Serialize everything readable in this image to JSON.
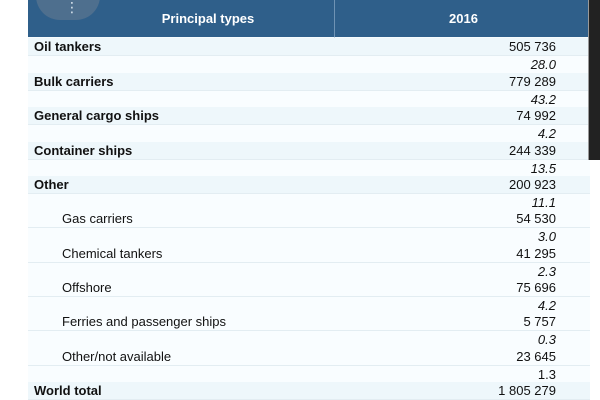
{
  "header": {
    "type_label": "Principal types",
    "year_label": "2016",
    "menu_icon": "vertical-dots"
  },
  "rows": [
    {
      "label": "Oil tankers",
      "value": "505 736",
      "share": "28.0"
    },
    {
      "label": "Bulk carriers",
      "value": "779 289",
      "share": "43.2"
    },
    {
      "label": "General cargo ships",
      "value": "74 992",
      "share": "4.2"
    },
    {
      "label": "Container ships",
      "value": "244 339",
      "share": "13.5"
    },
    {
      "label": "Other",
      "value": "200 923",
      "share": "11.1"
    },
    {
      "label": "Gas carriers",
      "value": "54 530",
      "share": "3.0"
    },
    {
      "label": "Chemical tankers",
      "value": "41 295",
      "share": "2.3"
    },
    {
      "label": "Offshore",
      "value": "75 696",
      "share": "4.2"
    },
    {
      "label": "Ferries and passenger ships",
      "value": "5 757",
      "share": "0.3"
    },
    {
      "label": "Other/not available",
      "value": "23 645",
      "share": "1.3"
    }
  ],
  "total": {
    "label": "World total",
    "value": "1 805 279"
  },
  "colors": {
    "header_bg": "#2f5f8a",
    "header_text": "#ffffff",
    "row_bg": "#eef7fb"
  }
}
